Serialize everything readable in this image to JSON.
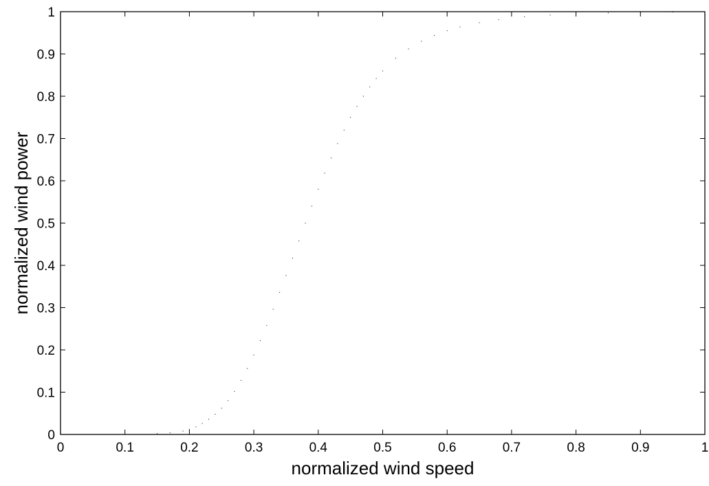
{
  "chart_data": {
    "type": "scatter",
    "title": "",
    "xlabel": "normalized wind speed",
    "ylabel": "normalized wind power",
    "xlim": [
      0,
      1
    ],
    "ylim": [
      0,
      1
    ],
    "xticks": [
      0,
      0.1,
      0.2,
      0.3,
      0.4,
      0.5,
      0.6,
      0.7,
      0.8,
      0.9,
      1
    ],
    "yticks": [
      0,
      0.1,
      0.2,
      0.3,
      0.4,
      0.5,
      0.6,
      0.7,
      0.8,
      0.9,
      1
    ],
    "xtick_labels": [
      "0",
      "0.1",
      "0.2",
      "0.3",
      "0.4",
      "0.5",
      "0.6",
      "0.7",
      "0.8",
      "0.9",
      "1"
    ],
    "ytick_labels": [
      "0",
      "0.1",
      "0.2",
      "0.3",
      "0.4",
      "0.5",
      "0.6",
      "0.7",
      "0.8",
      "0.9",
      "1"
    ],
    "grid": false,
    "legend": "none",
    "marker_color": "#000000",
    "series": [
      {
        "x": [
          0.0,
          0.05,
          0.1,
          0.15,
          0.17,
          0.19,
          0.2,
          0.21,
          0.22,
          0.23,
          0.24,
          0.25,
          0.26,
          0.27,
          0.28,
          0.29,
          0.3,
          0.31,
          0.32,
          0.33,
          0.34,
          0.35,
          0.36,
          0.37,
          0.38,
          0.39,
          0.4,
          0.41,
          0.42,
          0.43,
          0.44,
          0.45,
          0.46,
          0.47,
          0.48,
          0.49,
          0.5,
          0.52,
          0.54,
          0.56,
          0.58,
          0.6,
          0.62,
          0.65,
          0.68,
          0.72,
          0.76,
          0.8,
          0.85,
          0.9,
          0.95,
          0.98
        ],
        "y": [
          0.0,
          0.0,
          0.0,
          0.002,
          0.004,
          0.008,
          0.012,
          0.018,
          0.026,
          0.036,
          0.048,
          0.062,
          0.08,
          0.102,
          0.128,
          0.156,
          0.188,
          0.222,
          0.258,
          0.296,
          0.336,
          0.376,
          0.417,
          0.458,
          0.5,
          0.54,
          0.58,
          0.618,
          0.654,
          0.688,
          0.72,
          0.75,
          0.776,
          0.8,
          0.822,
          0.842,
          0.86,
          0.89,
          0.912,
          0.93,
          0.944,
          0.955,
          0.964,
          0.974,
          0.981,
          0.988,
          0.992,
          0.995,
          0.997,
          0.998,
          0.999,
          1.0
        ]
      }
    ]
  }
}
